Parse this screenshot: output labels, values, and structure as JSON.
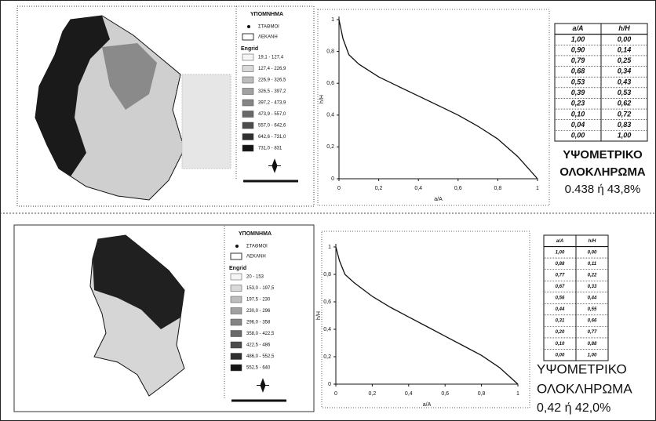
{
  "chart_data": [
    {
      "type": "line",
      "x_label": "a/A",
      "y_label": "h/H",
      "x": [
        0,
        0.02,
        0.05,
        0.1,
        0.2,
        0.3,
        0.4,
        0.5,
        0.6,
        0.7,
        0.8,
        0.9,
        0.95,
        1
      ],
      "values": [
        1,
        0.88,
        0.78,
        0.72,
        0.64,
        0.58,
        0.52,
        0.46,
        0.4,
        0.33,
        0.25,
        0.14,
        0.07,
        0
      ],
      "color": "#111111",
      "xlim": [
        0,
        1
      ],
      "ylim": [
        0,
        1
      ],
      "xticks": [
        0,
        {
          "value": 0.2,
          "label": "0,2"
        },
        {
          "value": 0.4,
          "label": "0,4"
        },
        {
          "value": 0.6,
          "label": "0,6"
        },
        {
          "value": 0.8,
          "label": "0,8"
        },
        1
      ],
      "yticks": [
        0,
        {
          "value": 0.2,
          "label": "0,2"
        },
        {
          "value": 0.4,
          "label": "0,4"
        },
        {
          "value": 0.6,
          "label": "0,6"
        },
        {
          "value": 0.8,
          "label": "0,8"
        },
        1
      ]
    },
    {
      "type": "line",
      "x_label": "a/A",
      "y_label": "h/H",
      "x": [
        0,
        0.02,
        0.05,
        0.1,
        0.2,
        0.3,
        0.4,
        0.5,
        0.6,
        0.7,
        0.8,
        0.9,
        0.95,
        1
      ],
      "values": [
        1,
        0.9,
        0.8,
        0.74,
        0.64,
        0.56,
        0.49,
        0.42,
        0.35,
        0.28,
        0.21,
        0.12,
        0.06,
        0
      ],
      "color": "#111111",
      "xlim": [
        0,
        1
      ],
      "ylim": [
        0,
        1
      ],
      "xticks": [
        0,
        {
          "value": 0.2,
          "label": "0,2"
        },
        {
          "value": 0.4,
          "label": "0,4"
        },
        {
          "value": 0.6,
          "label": "0,6"
        },
        {
          "value": 0.8,
          "label": "0,8"
        },
        1
      ],
      "yticks": [
        0,
        {
          "value": 0.2,
          "label": "0,2"
        },
        {
          "value": 0.4,
          "label": "0,4"
        },
        {
          "value": 0.6,
          "label": "0,6"
        },
        {
          "value": 0.8,
          "label": "0,8"
        },
        1
      ]
    }
  ],
  "panels": [
    {
      "legend": {
        "title": "ΥΠΟΜΝΗΜΑ",
        "stations": "ΣΤΑΘΜΟΙ",
        "basin": "ΛΕΚΑΝΗ",
        "grid": "Engrid",
        "classes": [
          "19,1 - 127,4",
          "127,4 - 226,9",
          "226,9 - 326,5",
          "326,5 - 397,2",
          "397,2 - 473,9",
          "473,9 - 557,0",
          "557,0 - 642,6",
          "642,6 - 731,0",
          "731,0 - 831"
        ]
      },
      "table": {
        "header": [
          "a/A",
          "h/H"
        ],
        "rows": [
          [
            "1,00",
            "0,00"
          ],
          [
            "0,90",
            "0,14"
          ],
          [
            "0,79",
            "0,25"
          ],
          [
            "0,68",
            "0,34"
          ],
          [
            "0,53",
            "0,43"
          ],
          [
            "0,39",
            "0,53"
          ],
          [
            "0,23",
            "0,62"
          ],
          [
            "0,10",
            "0,72"
          ],
          [
            "0,04",
            "0,83"
          ],
          [
            "0,00",
            "1,00"
          ]
        ]
      },
      "integral": [
        "ΥΨΟΜΕΤΡΙΚΟ",
        "ΟΛΟΚΛΗΡΩΜΑ",
        "0.438 ή 43,8%"
      ]
    },
    {
      "legend": {
        "title": "ΥΠΟΜΝΗΜΑ",
        "stations": "ΣΤΑΘΜΟΙ",
        "basin": "ΛΕΚΑΝΗ",
        "grid": "Engrid",
        "classes": [
          "20 - 153",
          "153,0 - 197,5",
          "197,5 - 230",
          "230,0 - 296",
          "296,0 - 358",
          "358,0 - 422,5",
          "422,5 - 486",
          "486,0 - 552,5",
          "552,5 - 640"
        ]
      },
      "table": {
        "header": [
          "a/A",
          "h/H"
        ],
        "rows": [
          [
            "1,00",
            "0,00"
          ],
          [
            "0,88",
            "0,11"
          ],
          [
            "0,77",
            "0,22"
          ],
          [
            "0,67",
            "0,33"
          ],
          [
            "0,56",
            "0,44"
          ],
          [
            "0,44",
            "0,55"
          ],
          [
            "0,31",
            "0,66"
          ],
          [
            "0,20",
            "0,77"
          ],
          [
            "0,10",
            "0,88"
          ],
          [
            "0,00",
            "1,00"
          ]
        ]
      },
      "integral": [
        "ΥΨΟΜΕΤΡΙΚΟ",
        "ΟΛΟΚΛΗΡΩΜΑ",
        "0,42 ή 42,0%"
      ]
    }
  ]
}
